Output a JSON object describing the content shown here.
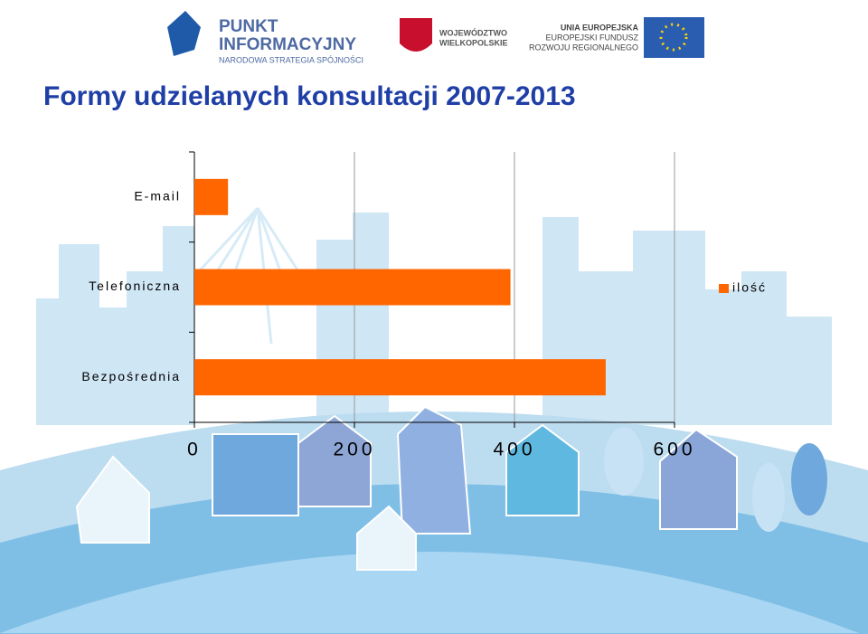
{
  "header": {
    "logo1_title": "PUNKT",
    "logo1_title2": "INFORMACYJNY",
    "logo1_subtitle": "NARODOWA STRATEGIA SPÓJNOŚCI",
    "logo2_line1": "WOJEWÓDZTWO",
    "logo2_line2": "WIELKOPOLSKIE",
    "logo3_line1": "UNIA EUROPEJSKA",
    "logo3_line2": "EUROPEJSKI FUNDUSZ",
    "logo3_line3": "ROZWOJU REGIONALNEGO"
  },
  "chart_data": {
    "type": "hbar",
    "title": "Formy udzielanych konsultacji 2007-2013",
    "categories": [
      "E-mail",
      "Telefoniczna",
      "Bezpośrednia"
    ],
    "series": [
      {
        "name": "ilość",
        "color": "#ff6600",
        "values": [
          42,
          395,
          514
        ]
      }
    ],
    "xlim": [
      0,
      600
    ],
    "xticks": [
      0,
      200,
      400,
      600
    ],
    "grid": true,
    "legend": "right"
  }
}
